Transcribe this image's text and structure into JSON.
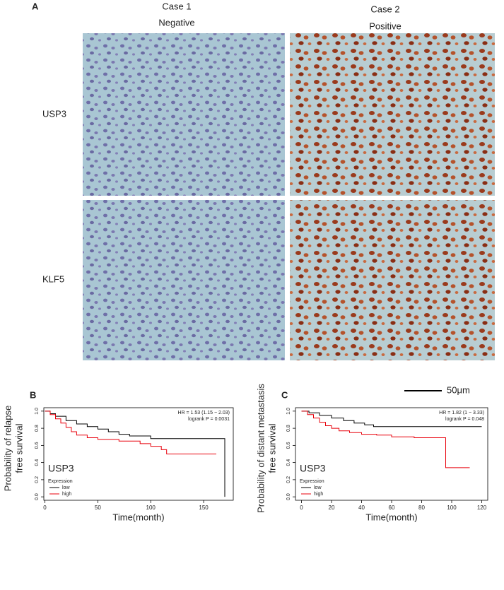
{
  "panel_a": {
    "letter": "A",
    "columns": [
      [
        "Case 1",
        "Negative"
      ],
      [
        "Case 2",
        "Positive"
      ]
    ],
    "rows": [
      "USP3",
      "KLF5"
    ],
    "scale_bar": "50μm"
  },
  "chart_data": [
    {
      "type": "line",
      "letter": "B",
      "xlabel": "Time(month)",
      "ylabel": [
        "Probability of relapse",
        "free survival"
      ],
      "annotations": [
        "HR = 1.53 (1.15 − 2.03)",
        "logrank P = 0.0031"
      ],
      "gene": "USP3",
      "legend_title": "Expression",
      "legend": "bottom-left",
      "xlim": [
        -1,
        178
      ],
      "xticks": [
        0,
        50,
        100,
        150
      ],
      "ylim": [
        -0.04,
        1.04
      ],
      "yticks": [
        {
          "value": 0,
          "label": "0.0"
        },
        0.2,
        0.4,
        0.6,
        0.8,
        {
          "value": 1,
          "label": "1.0"
        }
      ],
      "series": [
        {
          "name": "low",
          "color": "#000000",
          "x": [
            0,
            5,
            5,
            10,
            10,
            20,
            20,
            30,
            30,
            40,
            40,
            50,
            50,
            60,
            60,
            70,
            70,
            80,
            80,
            100,
            100,
            170,
            170
          ],
          "values": [
            1,
            1,
            0.97,
            0.97,
            0.94,
            0.94,
            0.89,
            0.89,
            0.85,
            0.85,
            0.82,
            0.82,
            0.79,
            0.79,
            0.76,
            0.76,
            0.73,
            0.73,
            0.71,
            0.71,
            0.68,
            0.68,
            0
          ]
        },
        {
          "name": "high",
          "color": "#e8000b",
          "x": [
            0,
            5,
            5,
            10,
            10,
            15,
            15,
            20,
            20,
            25,
            25,
            30,
            30,
            40,
            40,
            50,
            50,
            70,
            70,
            90,
            90,
            100,
            100,
            110,
            110,
            115,
            115,
            162
          ],
          "values": [
            1,
            1,
            0.96,
            0.96,
            0.91,
            0.91,
            0.86,
            0.86,
            0.81,
            0.81,
            0.76,
            0.76,
            0.72,
            0.72,
            0.69,
            0.69,
            0.67,
            0.67,
            0.65,
            0.65,
            0.62,
            0.62,
            0.59,
            0.59,
            0.55,
            0.55,
            0.5,
            0.5
          ]
        }
      ]
    },
    {
      "type": "line",
      "letter": "C",
      "xlabel": "Time(month)",
      "ylabel": [
        "Probability of distant metastasis",
        "free survival"
      ],
      "annotations": [
        "HR = 1.82 (1 − 3.33)",
        "logrank P = 0.048"
      ],
      "gene": "USP3",
      "legend_title": "Expression",
      "legend": "bottom-left",
      "xlim": [
        -4,
        124
      ],
      "xticks": [
        0,
        20,
        40,
        60,
        80,
        100,
        120
      ],
      "ylim": [
        -0.04,
        1.04
      ],
      "yticks": [
        {
          "value": 0,
          "label": "0.0"
        },
        0.2,
        0.4,
        0.6,
        0.8,
        {
          "value": 1,
          "label": "1.0"
        }
      ],
      "series": [
        {
          "name": "low",
          "color": "#000000",
          "x": [
            0,
            5,
            5,
            12,
            12,
            20,
            20,
            28,
            28,
            35,
            35,
            42,
            42,
            48,
            48,
            120
          ],
          "values": [
            1,
            1,
            0.98,
            0.98,
            0.95,
            0.95,
            0.92,
            0.92,
            0.89,
            0.89,
            0.86,
            0.86,
            0.84,
            0.84,
            0.82,
            0.82
          ]
        },
        {
          "name": "high",
          "color": "#e8000b",
          "x": [
            0,
            4,
            4,
            8,
            8,
            12,
            12,
            16,
            16,
            20,
            20,
            25,
            25,
            32,
            32,
            40,
            40,
            50,
            50,
            60,
            60,
            75,
            75,
            96,
            96,
            112
          ],
          "values": [
            1,
            1,
            0.96,
            0.96,
            0.92,
            0.92,
            0.87,
            0.87,
            0.83,
            0.83,
            0.8,
            0.8,
            0.77,
            0.77,
            0.75,
            0.75,
            0.73,
            0.73,
            0.72,
            0.72,
            0.7,
            0.7,
            0.69,
            0.69,
            0.34,
            0.34
          ]
        }
      ]
    }
  ]
}
